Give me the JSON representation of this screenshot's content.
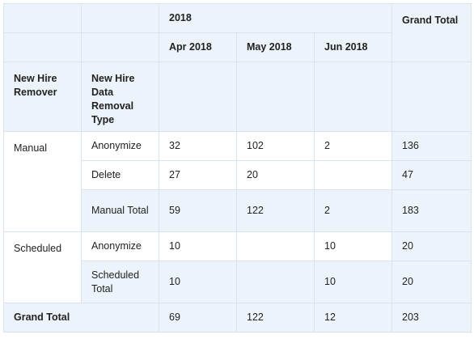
{
  "header": {
    "year": "2018",
    "grand_total": "Grand Total",
    "months": [
      "Apr 2018",
      "May 2018",
      "Jun 2018"
    ],
    "col1": "New Hire Remover",
    "col2": "New Hire Data Removal Type"
  },
  "groups": {
    "manual": {
      "label": "Manual",
      "anonymize": {
        "type": "Anonymize",
        "apr": "32",
        "may": "102",
        "jun": "2",
        "total": "136"
      },
      "delete": {
        "type": "Delete",
        "apr": "27",
        "may": "20",
        "jun": "",
        "total": "47"
      },
      "subtotal": {
        "type": "Manual Total",
        "apr": "59",
        "may": "122",
        "jun": "2",
        "total": "183"
      }
    },
    "scheduled": {
      "label": "Scheduled",
      "anonymize": {
        "type": "Anonymize",
        "apr": "10",
        "may": "",
        "jun": "10",
        "total": "20"
      },
      "subtotal": {
        "type": "Scheduled Total",
        "apr": "10",
        "may": "",
        "jun": "10",
        "total": "20"
      }
    }
  },
  "grand_total_row": {
    "label": "Grand Total",
    "apr": "69",
    "may": "122",
    "jun": "12",
    "total": "203"
  }
}
